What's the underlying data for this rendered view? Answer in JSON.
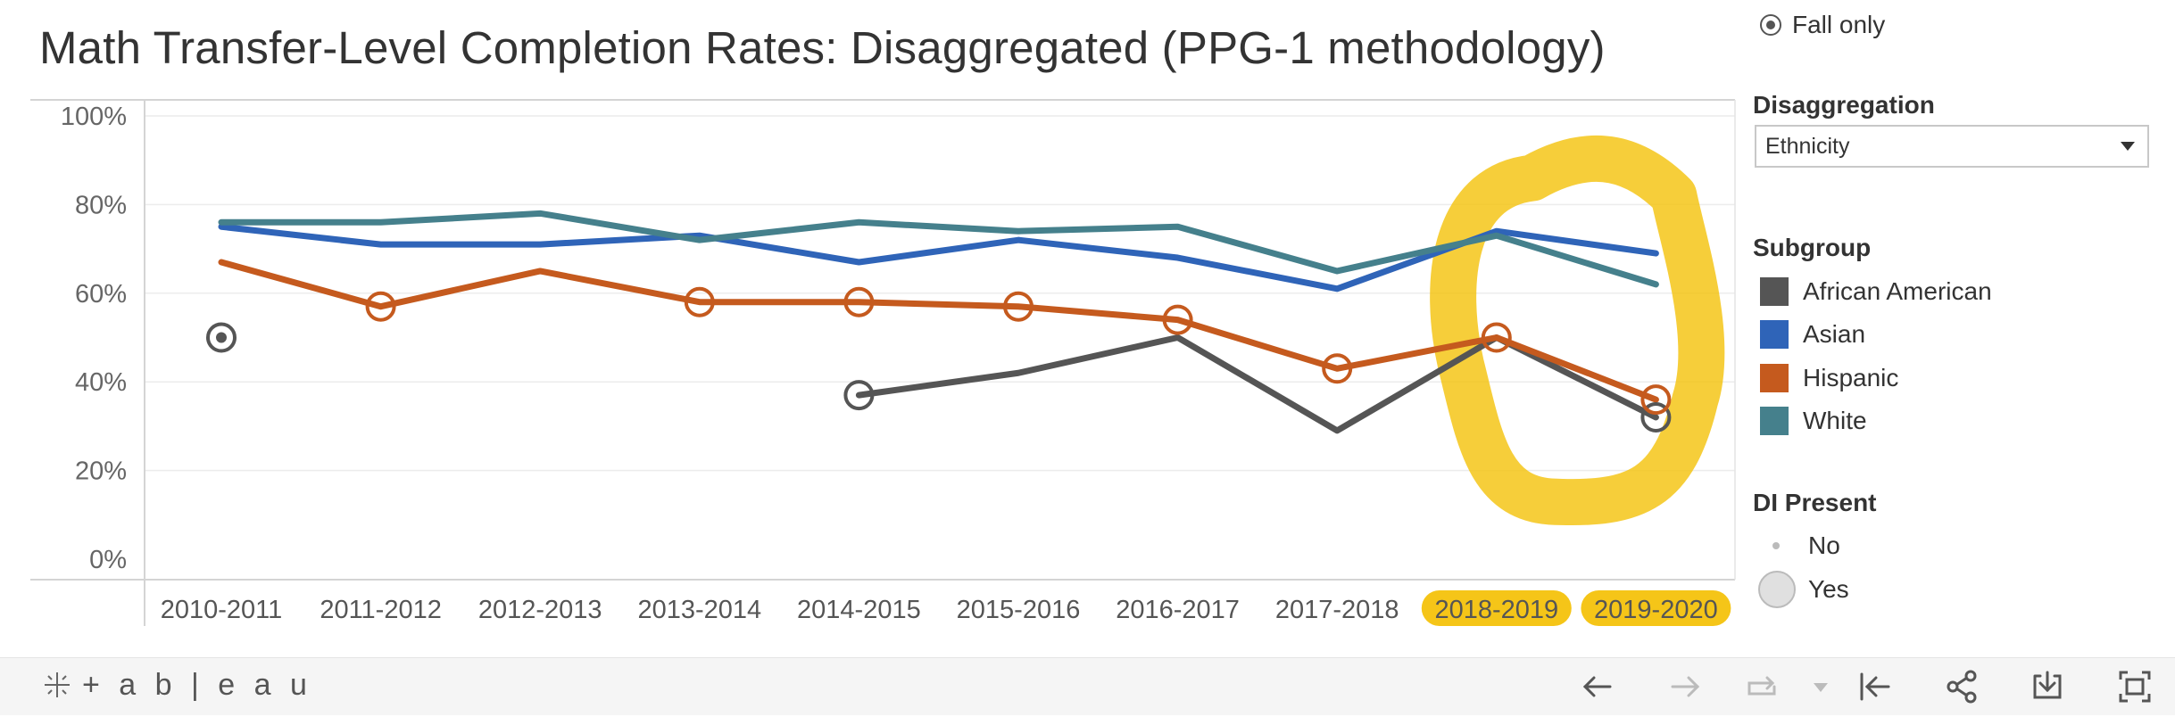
{
  "title": "Math Transfer-Level Completion Rates: Disaggregated (PPG-1 methodology)",
  "filters": {
    "term_option": "Fall only",
    "disaggregation_label": "Disaggregation",
    "disaggregation_value": "Ethnicity"
  },
  "subgroup_legend": {
    "heading": "Subgroup",
    "items": [
      {
        "label": "African American",
        "color": "#555555"
      },
      {
        "label": "Asian",
        "color": "#2f64b8"
      },
      {
        "label": "Hispanic",
        "color": "#c55a1e"
      },
      {
        "label": "White",
        "color": "#45808c"
      }
    ]
  },
  "di_legend": {
    "heading": "DI Present",
    "items": [
      {
        "label": "No"
      },
      {
        "label": "Yes"
      }
    ]
  },
  "toolbar": {
    "logo_text": "+ a b | e a u",
    "icons": [
      "undo-icon",
      "redo-icon",
      "revert-icon",
      "dropdown-arrow-icon",
      "reset-icon",
      "share-icon",
      "download-icon",
      "fullscreen-icon"
    ]
  },
  "chart_data": {
    "type": "line",
    "title": "Math Transfer-Level Completion Rates: Disaggregated (PPG-1 methodology)",
    "categories": [
      "2010-2011",
      "2011-2012",
      "2012-2013",
      "2013-2014",
      "2014-2015",
      "2015-2016",
      "2016-2017",
      "2017-2018",
      "2018-2019",
      "2019-2020"
    ],
    "highlighted_categories": [
      "2018-2019",
      "2019-2020"
    ],
    "highlight_color": "#f5c518",
    "yticks": [
      0,
      20,
      40,
      60,
      80,
      100
    ],
    "ytick_labels": [
      "0%",
      "20%",
      "40%",
      "60%",
      "80%",
      "100%"
    ],
    "ylim": [
      0,
      100
    ],
    "grid": true,
    "series": [
      {
        "name": "African American",
        "color": "#555555",
        "values": [
          50,
          null,
          null,
          null,
          37,
          42,
          50,
          29,
          50,
          32
        ],
        "di": [
          true,
          false,
          false,
          false,
          true,
          false,
          false,
          false,
          false,
          true
        ]
      },
      {
        "name": "Asian",
        "color": "#2f64b8",
        "values": [
          75,
          71,
          71,
          73,
          67,
          72,
          68,
          61,
          74,
          69
        ],
        "di": [
          false,
          false,
          false,
          false,
          false,
          false,
          false,
          false,
          false,
          false
        ]
      },
      {
        "name": "Hispanic",
        "color": "#c55a1e",
        "values": [
          67,
          57,
          65,
          58,
          58,
          57,
          54,
          43,
          50,
          36
        ],
        "di": [
          false,
          true,
          false,
          true,
          true,
          true,
          true,
          true,
          true,
          true
        ]
      },
      {
        "name": "White",
        "color": "#45808c",
        "values": [
          76,
          76,
          78,
          72,
          76,
          74,
          75,
          65,
          73,
          62
        ],
        "di": [
          false,
          false,
          false,
          false,
          false,
          false,
          false,
          false,
          false,
          false
        ]
      }
    ],
    "legend": "right"
  }
}
